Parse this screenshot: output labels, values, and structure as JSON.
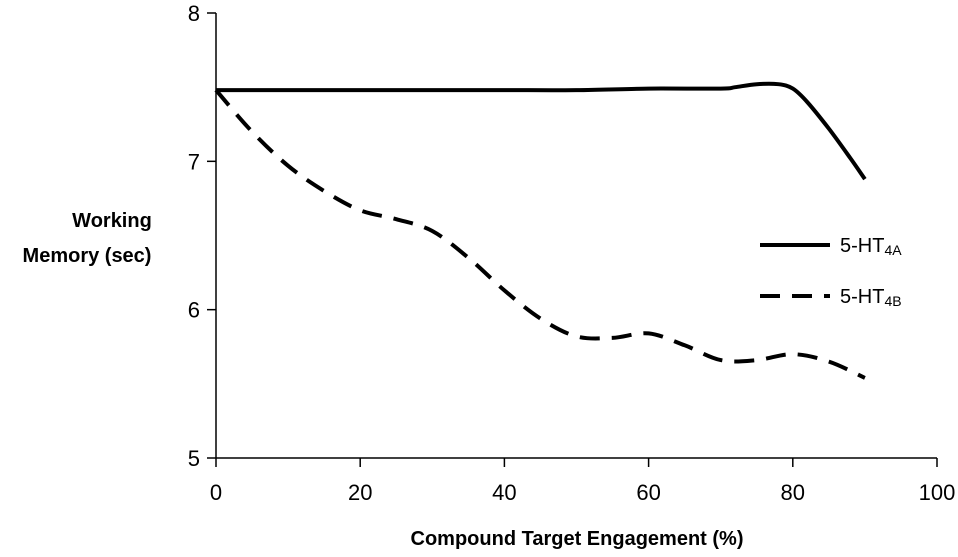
{
  "chart_data": {
    "type": "line",
    "title": "",
    "xlabel": "Compound Target Engagement (%)",
    "ylabel_line1": "Working",
    "ylabel_line2": "Memory (sec)",
    "xlim": [
      0,
      100
    ],
    "ylim": [
      5,
      8
    ],
    "x_ticks": [
      0,
      20,
      40,
      60,
      80,
      100
    ],
    "y_ticks": [
      5,
      6,
      7,
      8
    ],
    "grid": false,
    "legend_position": "right",
    "series": [
      {
        "name_main": "5-HT",
        "name_sub": "4A",
        "style": "solid",
        "color": "#000000",
        "x": [
          0,
          10,
          20,
          30,
          40,
          50,
          60,
          70,
          72,
          75,
          78,
          80,
          82,
          85,
          88,
          90
        ],
        "y": [
          7.48,
          7.48,
          7.48,
          7.48,
          7.48,
          7.48,
          7.49,
          7.49,
          7.5,
          7.52,
          7.52,
          7.49,
          7.4,
          7.22,
          7.02,
          6.88
        ]
      },
      {
        "name_main": "5-HT",
        "name_sub": "4B",
        "style": "dashed",
        "color": "#000000",
        "x": [
          0,
          5,
          10,
          15,
          20,
          25,
          30,
          35,
          40,
          45,
          50,
          55,
          60,
          65,
          70,
          75,
          80,
          85,
          90
        ],
        "y": [
          7.48,
          7.2,
          6.97,
          6.8,
          6.67,
          6.61,
          6.53,
          6.35,
          6.13,
          5.94,
          5.82,
          5.81,
          5.84,
          5.76,
          5.66,
          5.66,
          5.7,
          5.65,
          5.54
        ]
      }
    ]
  }
}
